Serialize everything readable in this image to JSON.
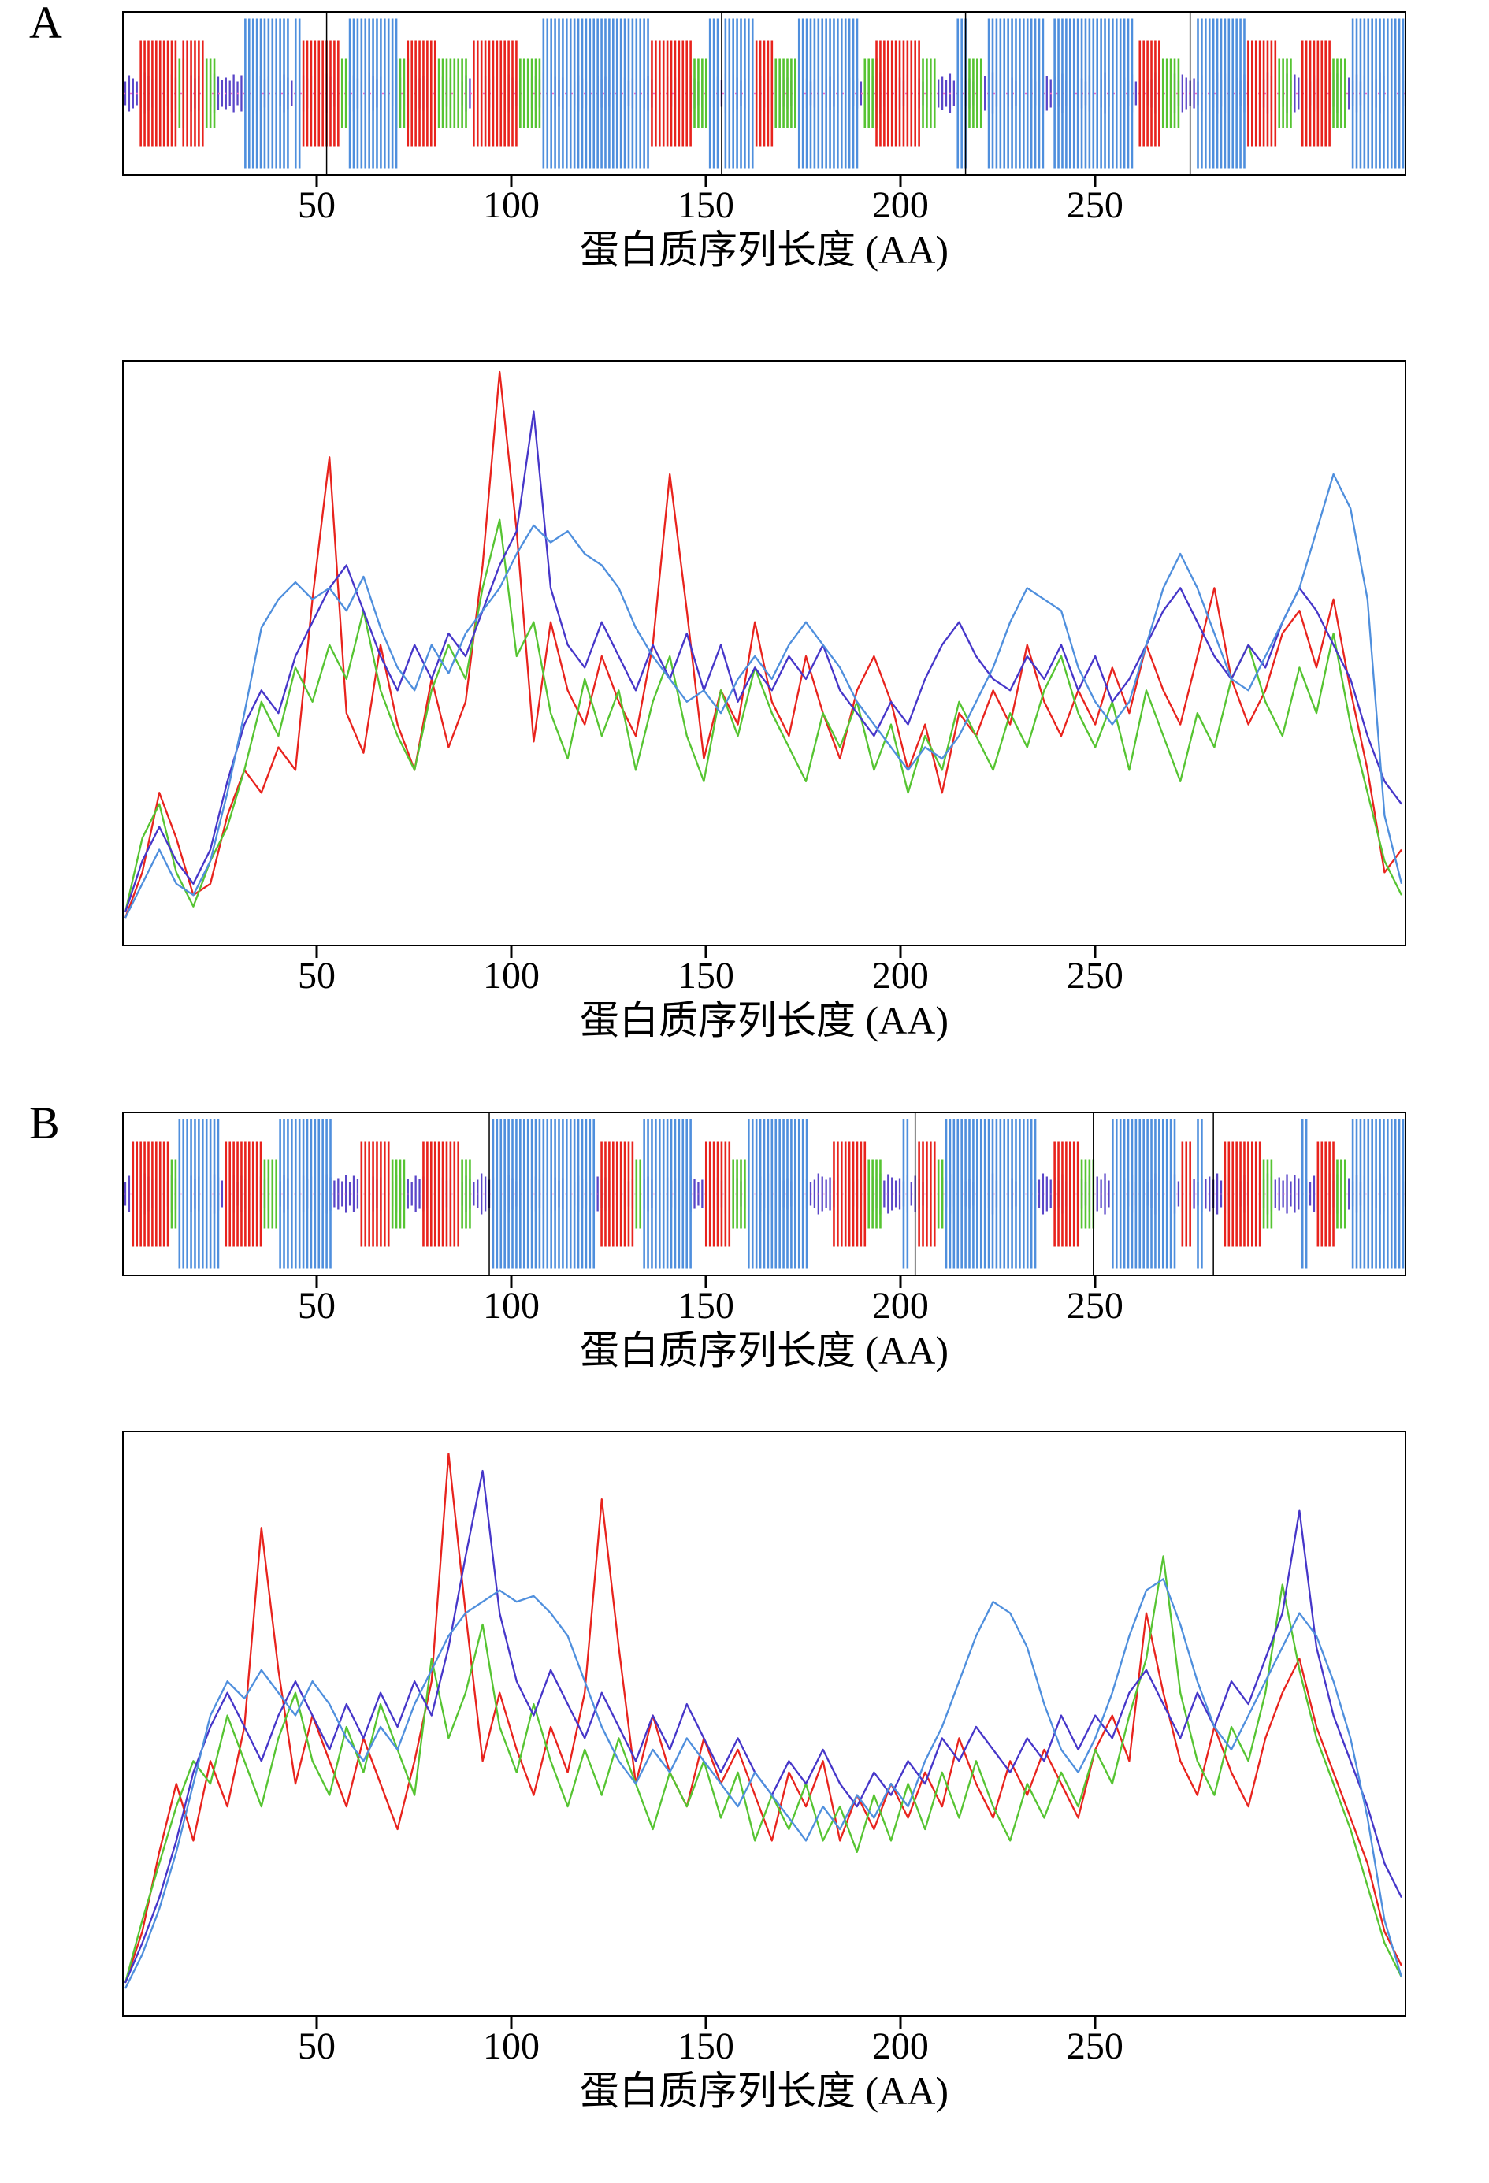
{
  "figure": {
    "panel_a_label": "A",
    "panel_b_label": "B",
    "axis_title": "蛋白质序列长度 (AA)",
    "x_ticks": [
      50,
      100,
      150,
      200,
      250
    ],
    "x_max": 330
  },
  "colors": {
    "red": "#e8231d",
    "green": "#56c432",
    "blue": "#4f8fdd",
    "purple": "#4636c9",
    "band": "#5a46c8",
    "center_line": "#f06cc8",
    "axis": "#000000"
  },
  "chart_data": [
    {
      "id": "panel-A-structure-strip",
      "type": "strip",
      "panel": "A",
      "x_max": 330,
      "x_ticks": [
        50,
        100,
        150,
        200,
        250
      ],
      "xlabel": "蛋白质序列长度 (AA)",
      "segments": {
        "red": [
          [
            4,
            13
          ],
          [
            15,
            20
          ],
          [
            46,
            55
          ],
          [
            73,
            80
          ],
          [
            90,
            101
          ],
          [
            136,
            146
          ],
          [
            163,
            167
          ],
          [
            194,
            205
          ],
          [
            262,
            267
          ],
          [
            290,
            297
          ],
          [
            304,
            311
          ]
        ],
        "green": [
          [
            14,
            15
          ],
          [
            21,
            23
          ],
          [
            56,
            57
          ],
          [
            70,
            73
          ],
          [
            81,
            88
          ],
          [
            102,
            107
          ],
          [
            147,
            150
          ],
          [
            168,
            173
          ],
          [
            191,
            194
          ],
          [
            206,
            209
          ],
          [
            218,
            221
          ],
          [
            268,
            272
          ],
          [
            298,
            301
          ],
          [
            312,
            315
          ]
        ],
        "blue": [
          [
            31,
            42
          ],
          [
            44,
            45
          ],
          [
            58,
            70
          ],
          [
            108,
            135
          ],
          [
            151,
            153
          ],
          [
            155,
            162
          ],
          [
            174,
            189
          ],
          [
            215,
            217
          ],
          [
            223,
            237
          ],
          [
            240,
            260
          ],
          [
            277,
            289
          ],
          [
            317,
            330
          ]
        ]
      },
      "dividers": [
        52,
        154,
        217,
        275
      ]
    },
    {
      "id": "panel-A-profile-lines",
      "type": "line",
      "panel": "A",
      "x_max": 330,
      "x_ticks": [
        50,
        100,
        150,
        200,
        250
      ],
      "xlabel": "蛋白质序列长度 (AA)",
      "ylim": [
        0,
        1
      ],
      "series": [
        {
          "name": "red",
          "color": "#e8231d",
          "values": [
            0.04,
            0.12,
            0.26,
            0.18,
            0.08,
            0.1,
            0.22,
            0.3,
            0.26,
            0.34,
            0.3,
            0.6,
            0.85,
            0.4,
            0.33,
            0.52,
            0.38,
            0.3,
            0.46,
            0.34,
            0.42,
            0.66,
            1.0,
            0.72,
            0.35,
            0.56,
            0.44,
            0.38,
            0.5,
            0.42,
            0.36,
            0.52,
            0.82,
            0.58,
            0.32,
            0.44,
            0.38,
            0.56,
            0.42,
            0.36,
            0.5,
            0.4,
            0.32,
            0.44,
            0.5,
            0.42,
            0.3,
            0.38,
            0.26,
            0.4,
            0.36,
            0.44,
            0.38,
            0.52,
            0.42,
            0.36,
            0.44,
            0.38,
            0.48,
            0.4,
            0.52,
            0.44,
            0.38,
            0.5,
            0.62,
            0.46,
            0.38,
            0.44,
            0.54,
            0.58,
            0.48,
            0.6,
            0.44,
            0.3,
            0.12,
            0.16
          ]
        },
        {
          "name": "green",
          "color": "#56c432",
          "values": [
            0.05,
            0.18,
            0.24,
            0.12,
            0.06,
            0.14,
            0.2,
            0.3,
            0.42,
            0.36,
            0.48,
            0.42,
            0.52,
            0.46,
            0.58,
            0.44,
            0.36,
            0.3,
            0.44,
            0.52,
            0.46,
            0.62,
            0.74,
            0.5,
            0.56,
            0.4,
            0.32,
            0.46,
            0.36,
            0.44,
            0.3,
            0.42,
            0.5,
            0.36,
            0.28,
            0.44,
            0.36,
            0.48,
            0.4,
            0.34,
            0.28,
            0.4,
            0.34,
            0.42,
            0.3,
            0.38,
            0.26,
            0.36,
            0.3,
            0.42,
            0.36,
            0.3,
            0.4,
            0.34,
            0.44,
            0.5,
            0.4,
            0.34,
            0.42,
            0.3,
            0.44,
            0.36,
            0.28,
            0.4,
            0.34,
            0.46,
            0.52,
            0.42,
            0.36,
            0.48,
            0.4,
            0.54,
            0.38,
            0.26,
            0.14,
            0.08
          ]
        },
        {
          "name": "purple",
          "color": "#4636c9",
          "values": [
            0.05,
            0.14,
            0.2,
            0.14,
            0.1,
            0.16,
            0.28,
            0.38,
            0.44,
            0.4,
            0.5,
            0.56,
            0.62,
            0.66,
            0.58,
            0.5,
            0.44,
            0.52,
            0.46,
            0.54,
            0.5,
            0.58,
            0.66,
            0.72,
            0.93,
            0.62,
            0.52,
            0.48,
            0.56,
            0.5,
            0.44,
            0.52,
            0.46,
            0.54,
            0.44,
            0.52,
            0.42,
            0.48,
            0.44,
            0.5,
            0.46,
            0.52,
            0.44,
            0.4,
            0.36,
            0.42,
            0.38,
            0.46,
            0.52,
            0.56,
            0.5,
            0.46,
            0.44,
            0.5,
            0.46,
            0.52,
            0.44,
            0.5,
            0.42,
            0.46,
            0.52,
            0.58,
            0.62,
            0.56,
            0.5,
            0.46,
            0.52,
            0.48,
            0.56,
            0.62,
            0.58,
            0.52,
            0.46,
            0.36,
            0.28,
            0.24
          ]
        },
        {
          "name": "blue",
          "color": "#4f8fdd",
          "values": [
            0.04,
            0.1,
            0.16,
            0.1,
            0.08,
            0.14,
            0.26,
            0.4,
            0.55,
            0.6,
            0.63,
            0.6,
            0.62,
            0.58,
            0.64,
            0.55,
            0.48,
            0.44,
            0.52,
            0.47,
            0.54,
            0.58,
            0.62,
            0.68,
            0.73,
            0.7,
            0.72,
            0.68,
            0.66,
            0.62,
            0.55,
            0.5,
            0.46,
            0.42,
            0.44,
            0.4,
            0.46,
            0.5,
            0.46,
            0.52,
            0.56,
            0.52,
            0.48,
            0.42,
            0.38,
            0.34,
            0.3,
            0.34,
            0.32,
            0.36,
            0.42,
            0.48,
            0.56,
            0.62,
            0.6,
            0.58,
            0.48,
            0.42,
            0.38,
            0.42,
            0.52,
            0.62,
            0.68,
            0.62,
            0.54,
            0.46,
            0.44,
            0.5,
            0.56,
            0.62,
            0.72,
            0.82,
            0.76,
            0.6,
            0.22,
            0.1
          ]
        }
      ]
    },
    {
      "id": "panel-B-structure-strip",
      "type": "strip",
      "panel": "B",
      "x_max": 330,
      "x_ticks": [
        50,
        100,
        150,
        200,
        250
      ],
      "xlabel": "蛋白质序列长度 (AA)",
      "segments": {
        "red": [
          [
            2,
            11
          ],
          [
            26,
            35
          ],
          [
            61,
            68
          ],
          [
            77,
            86
          ],
          [
            123,
            131
          ],
          [
            150,
            156
          ],
          [
            183,
            191
          ],
          [
            205,
            209
          ],
          [
            240,
            246
          ],
          [
            273,
            275
          ],
          [
            284,
            293
          ],
          [
            308,
            312
          ]
        ],
        "green": [
          [
            12,
            13
          ],
          [
            36,
            39
          ],
          [
            69,
            72
          ],
          [
            87,
            89
          ],
          [
            132,
            133
          ],
          [
            157,
            160
          ],
          [
            192,
            195
          ],
          [
            210,
            211
          ],
          [
            247,
            250
          ],
          [
            294,
            296
          ],
          [
            313,
            315
          ]
        ],
        "blue": [
          [
            14,
            24
          ],
          [
            40,
            53
          ],
          [
            95,
            121
          ],
          [
            134,
            146
          ],
          [
            161,
            176
          ],
          [
            201,
            202
          ],
          [
            212,
            235
          ],
          [
            255,
            271
          ],
          [
            277,
            278
          ],
          [
            304,
            305
          ],
          [
            317,
            330
          ]
        ]
      },
      "dividers": [
        94,
        204,
        250,
        281
      ]
    },
    {
      "id": "panel-B-profile-lines",
      "type": "line",
      "panel": "B",
      "x_max": 330,
      "x_ticks": [
        50,
        100,
        150,
        200,
        250
      ],
      "xlabel": "蛋白质序列长度 (AA)",
      "ylim": [
        0,
        1
      ],
      "series": [
        {
          "name": "red",
          "color": "#e8231d",
          "values": [
            0.05,
            0.14,
            0.28,
            0.4,
            0.3,
            0.44,
            0.36,
            0.5,
            0.85,
            0.6,
            0.4,
            0.52,
            0.44,
            0.36,
            0.48,
            0.4,
            0.32,
            0.44,
            0.58,
            0.98,
            0.7,
            0.44,
            0.56,
            0.46,
            0.38,
            0.5,
            0.42,
            0.56,
            0.9,
            0.64,
            0.4,
            0.52,
            0.42,
            0.36,
            0.48,
            0.4,
            0.46,
            0.38,
            0.3,
            0.42,
            0.36,
            0.44,
            0.3,
            0.38,
            0.32,
            0.4,
            0.34,
            0.42,
            0.36,
            0.48,
            0.4,
            0.34,
            0.44,
            0.38,
            0.46,
            0.4,
            0.34,
            0.46,
            0.52,
            0.44,
            0.7,
            0.56,
            0.44,
            0.38,
            0.5,
            0.42,
            0.36,
            0.48,
            0.56,
            0.62,
            0.5,
            0.42,
            0.34,
            0.26,
            0.14,
            0.08
          ]
        },
        {
          "name": "green",
          "color": "#56c432",
          "values": [
            0.05,
            0.16,
            0.26,
            0.36,
            0.44,
            0.4,
            0.52,
            0.44,
            0.36,
            0.48,
            0.56,
            0.44,
            0.38,
            0.5,
            0.42,
            0.54,
            0.46,
            0.38,
            0.62,
            0.48,
            0.56,
            0.68,
            0.5,
            0.42,
            0.54,
            0.44,
            0.36,
            0.46,
            0.38,
            0.48,
            0.4,
            0.32,
            0.42,
            0.36,
            0.44,
            0.34,
            0.42,
            0.3,
            0.38,
            0.32,
            0.4,
            0.3,
            0.36,
            0.28,
            0.38,
            0.3,
            0.4,
            0.32,
            0.42,
            0.34,
            0.44,
            0.36,
            0.3,
            0.4,
            0.34,
            0.42,
            0.36,
            0.46,
            0.4,
            0.52,
            0.62,
            0.8,
            0.56,
            0.44,
            0.38,
            0.5,
            0.44,
            0.56,
            0.75,
            0.6,
            0.48,
            0.4,
            0.32,
            0.22,
            0.12,
            0.06
          ]
        },
        {
          "name": "purple",
          "color": "#4636c9",
          "values": [
            0.05,
            0.12,
            0.2,
            0.3,
            0.42,
            0.5,
            0.56,
            0.5,
            0.44,
            0.52,
            0.58,
            0.52,
            0.46,
            0.54,
            0.48,
            0.56,
            0.5,
            0.58,
            0.52,
            0.64,
            0.8,
            0.95,
            0.7,
            0.58,
            0.52,
            0.6,
            0.54,
            0.48,
            0.56,
            0.5,
            0.44,
            0.52,
            0.46,
            0.54,
            0.48,
            0.42,
            0.48,
            0.42,
            0.38,
            0.44,
            0.4,
            0.46,
            0.4,
            0.36,
            0.42,
            0.38,
            0.44,
            0.4,
            0.48,
            0.44,
            0.5,
            0.46,
            0.42,
            0.48,
            0.44,
            0.52,
            0.46,
            0.52,
            0.48,
            0.56,
            0.6,
            0.54,
            0.48,
            0.56,
            0.5,
            0.58,
            0.54,
            0.62,
            0.7,
            0.88,
            0.64,
            0.52,
            0.44,
            0.36,
            0.26,
            0.2
          ]
        },
        {
          "name": "blue",
          "color": "#4f8fdd",
          "values": [
            0.04,
            0.1,
            0.18,
            0.28,
            0.4,
            0.52,
            0.58,
            0.55,
            0.6,
            0.56,
            0.52,
            0.58,
            0.54,
            0.48,
            0.44,
            0.5,
            0.46,
            0.54,
            0.6,
            0.66,
            0.7,
            0.72,
            0.74,
            0.72,
            0.73,
            0.7,
            0.66,
            0.58,
            0.5,
            0.44,
            0.4,
            0.46,
            0.42,
            0.48,
            0.44,
            0.4,
            0.36,
            0.42,
            0.38,
            0.34,
            0.3,
            0.36,
            0.32,
            0.38,
            0.34,
            0.4,
            0.36,
            0.44,
            0.5,
            0.58,
            0.66,
            0.72,
            0.7,
            0.64,
            0.54,
            0.46,
            0.42,
            0.48,
            0.56,
            0.66,
            0.74,
            0.76,
            0.68,
            0.58,
            0.5,
            0.46,
            0.52,
            0.58,
            0.64,
            0.7,
            0.66,
            0.58,
            0.48,
            0.34,
            0.16,
            0.06
          ]
        }
      ]
    }
  ]
}
